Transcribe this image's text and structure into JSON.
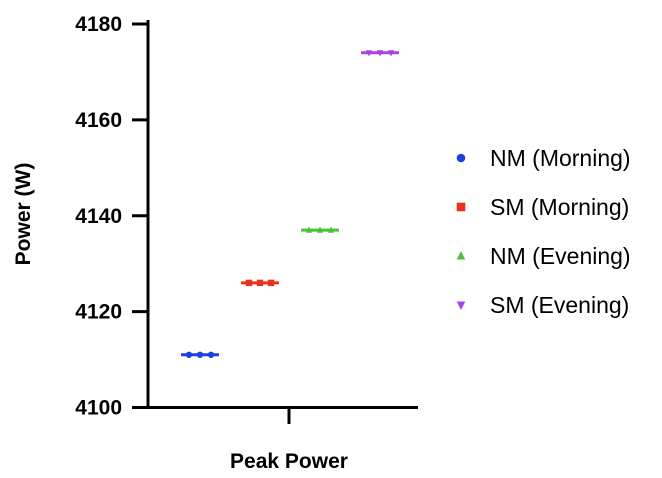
{
  "chart_data": {
    "type": "scatter",
    "title": "",
    "xlabel": "Peak Power",
    "ylabel": "Power (W)",
    "ylim": [
      4100,
      4180
    ],
    "yticks": [
      4100,
      4120,
      4140,
      4160,
      4180
    ],
    "grid": false,
    "legend_position": "right",
    "series": [
      {
        "name": "NM (Morning)",
        "value": 4111,
        "color": "#1f3fe0",
        "marker": "circle"
      },
      {
        "name": "SM (Morning)",
        "value": 4126,
        "color": "#e8321e",
        "marker": "square"
      },
      {
        "name": "NM (Evening)",
        "value": 4137,
        "color": "#4cc23a",
        "marker": "triangle-up"
      },
      {
        "name": "SM (Evening)",
        "value": 4174,
        "color": "#a545e6",
        "marker": "triangle-down"
      }
    ]
  }
}
